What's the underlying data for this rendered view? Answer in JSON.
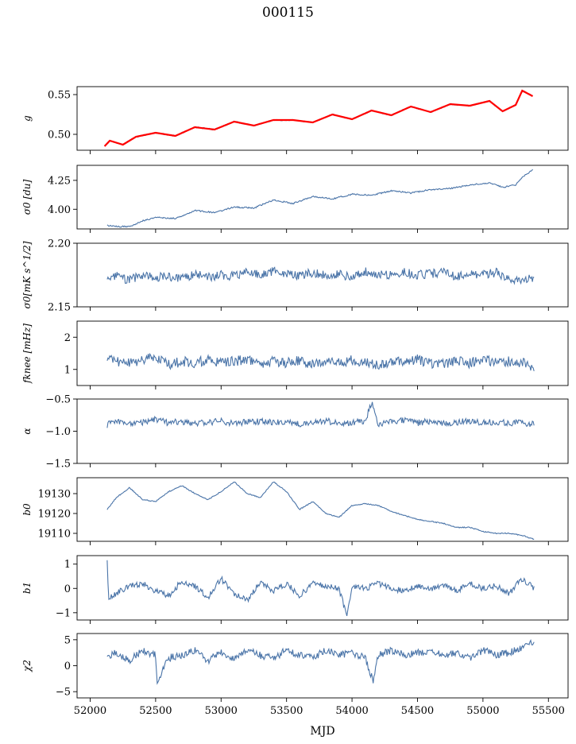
{
  "figure_title": "000115",
  "colors": {
    "series": "#4a74a8",
    "fit": "#ff0000",
    "axis": "#000000",
    "background": "#ffffff"
  },
  "chart_data": [
    {
      "type": "line",
      "id": "g",
      "ylabel": "g",
      "xlim": [
        51900,
        55650
      ],
      "ylim": [
        0.48,
        0.56
      ],
      "yticks": [
        0.5,
        0.55
      ],
      "ytick_labels": [
        "0.50",
        "0.55"
      ],
      "x": [
        52110,
        52150,
        52250,
        52350,
        52500,
        52650,
        52800,
        52950,
        53100,
        53250,
        53400,
        53550,
        53700,
        53850,
        54000,
        54150,
        54300,
        54450,
        54600,
        54750,
        54900,
        55050,
        55150,
        55250,
        55300,
        55380
      ],
      "y": [
        0.485,
        0.492,
        0.487,
        0.497,
        0.502,
        0.498,
        0.509,
        0.506,
        0.516,
        0.511,
        0.518,
        0.518,
        0.515,
        0.525,
        0.519,
        0.53,
        0.524,
        0.535,
        0.528,
        0.538,
        0.536,
        0.542,
        0.529,
        0.537,
        0.555,
        0.548
      ],
      "overlay": {
        "name": "",
        "color": "#ff0000"
      }
    },
    {
      "type": "line",
      "id": "sigma0-du",
      "ylabel": "σ0 [du]",
      "xlim": [
        51900,
        55650
      ],
      "ylim": [
        3.83,
        4.38
      ],
      "yticks": [
        4.0,
        4.25
      ],
      "ytick_labels": [
        "4.00",
        "4.25"
      ],
      "x": [
        52130,
        52200,
        52300,
        52400,
        52500,
        52650,
        52800,
        52950,
        53100,
        53250,
        53400,
        53550,
        53700,
        53850,
        54000,
        54150,
        54300,
        54450,
        54600,
        54750,
        54900,
        55050,
        55150,
        55250,
        55300,
        55380
      ],
      "y": [
        3.86,
        3.85,
        3.85,
        3.9,
        3.93,
        3.92,
        3.99,
        3.97,
        4.02,
        4.01,
        4.08,
        4.05,
        4.11,
        4.09,
        4.13,
        4.12,
        4.16,
        4.14,
        4.17,
        4.18,
        4.21,
        4.23,
        4.19,
        4.21,
        4.28,
        4.34
      ]
    },
    {
      "type": "line",
      "id": "sigma0-mk",
      "ylabel": "σ0[mK s^1/2]",
      "xlim": [
        51900,
        55650
      ],
      "ylim": [
        2.15,
        2.2
      ],
      "yticks": [
        2.15,
        2.2
      ],
      "ytick_labels": [
        "2.15",
        "2.20"
      ],
      "x": [
        52130,
        52200,
        52300,
        52400,
        52500,
        52600,
        52700,
        52800,
        52900,
        53000,
        53100,
        53200,
        53300,
        53400,
        53500,
        53600,
        53700,
        53800,
        53900,
        54000,
        54100,
        54200,
        54300,
        54400,
        54500,
        54600,
        54700,
        54800,
        54900,
        55000,
        55100,
        55200,
        55300,
        55390
      ],
      "y": [
        2.172,
        2.174,
        2.171,
        2.175,
        2.173,
        2.174,
        2.172,
        2.176,
        2.173,
        2.175,
        2.174,
        2.177,
        2.175,
        2.178,
        2.176,
        2.174,
        2.177,
        2.175,
        2.176,
        2.173,
        2.178,
        2.176,
        2.175,
        2.177,
        2.175,
        2.176,
        2.177,
        2.174,
        2.176,
        2.175,
        2.177,
        2.172,
        2.171,
        2.173
      ]
    },
    {
      "type": "line",
      "id": "fknee",
      "ylabel": "fknee [mHz]",
      "xlim": [
        51900,
        55650
      ],
      "ylim": [
        0.5,
        2.5
      ],
      "yticks": [
        1,
        2
      ],
      "ytick_labels": [
        "1",
        "2"
      ],
      "x": [
        52130,
        52200,
        52300,
        52400,
        52500,
        52600,
        52700,
        52800,
        52900,
        53000,
        53100,
        53200,
        53300,
        53400,
        53500,
        53600,
        53700,
        53800,
        53900,
        54000,
        54100,
        54200,
        54300,
        54400,
        54500,
        54600,
        54700,
        54800,
        54900,
        55000,
        55100,
        55200,
        55300,
        55390
      ],
      "y": [
        1.3,
        1.25,
        1.2,
        1.3,
        1.4,
        1.15,
        1.25,
        1.2,
        1.3,
        1.2,
        1.25,
        1.3,
        1.2,
        1.25,
        1.2,
        1.3,
        1.15,
        1.25,
        1.2,
        1.3,
        1.2,
        1.15,
        1.2,
        1.25,
        1.3,
        1.2,
        1.15,
        1.25,
        1.2,
        1.3,
        1.2,
        1.25,
        1.2,
        1.05
      ]
    },
    {
      "type": "line",
      "id": "alpha",
      "ylabel": "α",
      "xlim": [
        51900,
        55650
      ],
      "ylim": [
        -1.5,
        -0.5
      ],
      "yticks": [
        -1.5,
        -1.0,
        -0.5
      ],
      "ytick_labels": [
        "−1.5",
        "−1.0",
        "−0.5"
      ],
      "x": [
        52130,
        52200,
        52300,
        52400,
        52500,
        52600,
        52700,
        52800,
        52900,
        53000,
        53100,
        53200,
        53300,
        53400,
        53500,
        53600,
        53700,
        53800,
        53900,
        54000,
        54100,
        54150,
        54200,
        54300,
        54400,
        54500,
        54600,
        54700,
        54800,
        54900,
        55000,
        55100,
        55200,
        55300,
        55390
      ],
      "y": [
        -0.9,
        -0.85,
        -0.88,
        -0.86,
        -0.82,
        -0.87,
        -0.85,
        -0.89,
        -0.86,
        -0.84,
        -0.88,
        -0.86,
        -0.85,
        -0.87,
        -0.85,
        -0.89,
        -0.86,
        -0.84,
        -0.88,
        -0.86,
        -0.85,
        -0.55,
        -0.88,
        -0.86,
        -0.83,
        -0.87,
        -0.85,
        -0.88,
        -0.86,
        -0.84,
        -0.87,
        -0.85,
        -0.88,
        -0.86,
        -0.9
      ]
    },
    {
      "type": "line",
      "id": "b0",
      "ylabel": "b0",
      "xlim": [
        51900,
        55650
      ],
      "ylim": [
        19106,
        19138
      ],
      "yticks": [
        19110,
        19120,
        19130
      ],
      "ytick_labels": [
        "19110",
        "19120",
        "19130"
      ],
      "x": [
        52130,
        52200,
        52300,
        52400,
        52500,
        52600,
        52700,
        52800,
        52900,
        53000,
        53100,
        53200,
        53300,
        53400,
        53500,
        53600,
        53700,
        53800,
        53900,
        54000,
        54100,
        54200,
        54300,
        54400,
        54500,
        54600,
        54700,
        54800,
        54900,
        55000,
        55100,
        55200,
        55300,
        55390
      ],
      "y": [
        19122,
        19128,
        19133,
        19127,
        19126,
        19131,
        19134,
        19130,
        19127,
        19131,
        19136,
        19130,
        19128,
        19136,
        19131,
        19122,
        19126,
        19120,
        19118,
        19124,
        19125,
        19124,
        19121,
        19119,
        19117,
        19116,
        19115,
        19113,
        19113,
        19111,
        19110,
        19110,
        19109,
        19107
      ]
    },
    {
      "type": "line",
      "id": "b1",
      "ylabel": "b1",
      "xlim": [
        51900,
        55650
      ],
      "ylim": [
        -1.3,
        1.35
      ],
      "yticks": [
        -1,
        0,
        1
      ],
      "ytick_labels": [
        "−1",
        "0",
        "1"
      ],
      "x": [
        52130,
        52140,
        52200,
        52300,
        52400,
        52500,
        52600,
        52700,
        52800,
        52900,
        53000,
        53100,
        53200,
        53300,
        53400,
        53500,
        53600,
        53700,
        53800,
        53900,
        53960,
        54000,
        54100,
        54200,
        54300,
        54400,
        54500,
        54600,
        54700,
        54800,
        54900,
        55000,
        55100,
        55200,
        55300,
        55390
      ],
      "y": [
        1.2,
        -0.4,
        -0.2,
        0.1,
        0.2,
        -0.1,
        -0.3,
        0.3,
        0.1,
        -0.4,
        0.4,
        -0.2,
        -0.5,
        0.3,
        -0.1,
        0.2,
        -0.3,
        0.2,
        0.1,
        0.0,
        -1.1,
        0.1,
        0.0,
        0.2,
        0.0,
        -0.1,
        0.1,
        0.0,
        0.1,
        -0.1,
        0.2,
        0.0,
        0.1,
        -0.2,
        0.4,
        0.0
      ]
    },
    {
      "type": "line",
      "id": "chi2",
      "ylabel": "χ2",
      "xlim": [
        51900,
        55650
      ],
      "ylim": [
        -6.2,
        6.2
      ],
      "yticks": [
        -5,
        0,
        5
      ],
      "ytick_labels": [
        "−5",
        "0",
        "5"
      ],
      "x": [
        52130,
        52200,
        52300,
        52400,
        52500,
        52510,
        52600,
        52700,
        52800,
        52900,
        53000,
        53100,
        53200,
        53300,
        53400,
        53500,
        53600,
        53700,
        53800,
        53900,
        54000,
        54100,
        54160,
        54200,
        54300,
        54400,
        54500,
        54600,
        54700,
        54800,
        54900,
        55000,
        55100,
        55200,
        55300,
        55390
      ],
      "y": [
        1.5,
        2.5,
        1.0,
        3.0,
        2.0,
        -3.0,
        1.5,
        2.0,
        3.0,
        1.0,
        2.5,
        1.5,
        3.0,
        2.0,
        1.5,
        3.0,
        2.0,
        1.5,
        3.0,
        2.0,
        2.5,
        1.5,
        -3.0,
        2.0,
        3.0,
        2.0,
        2.5,
        3.0,
        2.0,
        2.5,
        1.5,
        3.0,
        2.0,
        2.5,
        3.5,
        4.5
      ]
    }
  ],
  "xaxis": {
    "label": "MJD",
    "ticks": [
      52000,
      52500,
      53000,
      53500,
      54000,
      54500,
      55000,
      55500
    ],
    "tick_labels": [
      "52000",
      "52500",
      "53000",
      "53500",
      "54000",
      "54500",
      "55000",
      "55500"
    ]
  }
}
